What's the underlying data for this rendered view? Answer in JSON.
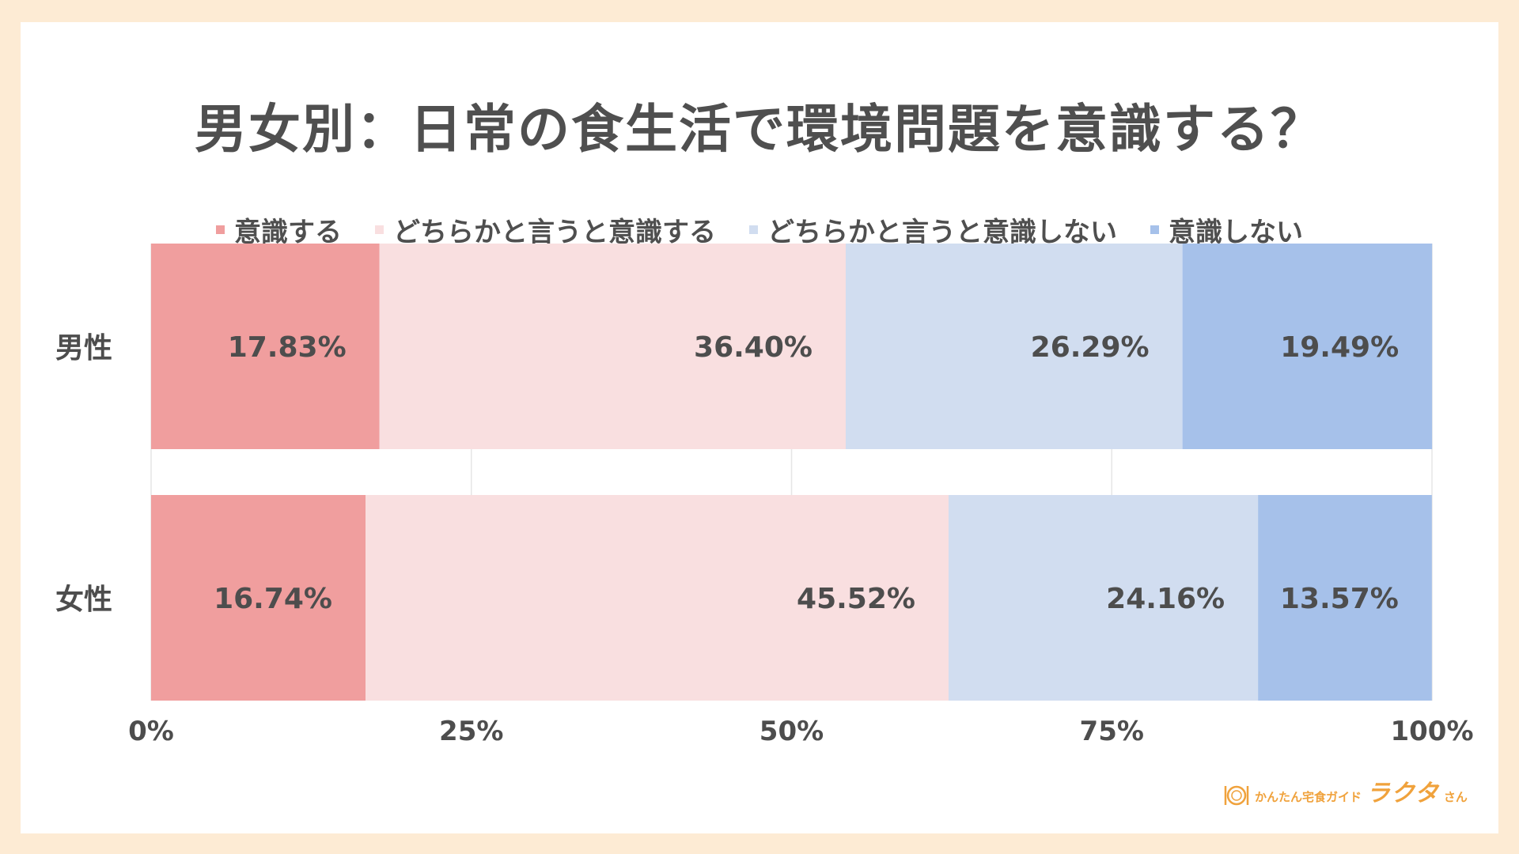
{
  "title": "男女別：日常の食生活で環境問題を意識する？",
  "chart_data": {
    "type": "bar",
    "orientation": "horizontal",
    "stacked": "percent",
    "title": "男女別：日常の食生活で環境問題を意識する？",
    "categories": [
      "男性",
      "女性"
    ],
    "series": [
      {
        "name": "意識する",
        "values": [
          17.83,
          16.74
        ],
        "labels": [
          "17.83%",
          "16.74%"
        ],
        "color": "#f09e9e"
      },
      {
        "name": "どちらかと言うと意識する",
        "values": [
          36.4,
          45.52
        ],
        "labels": [
          "36.40%",
          "45.52%"
        ],
        "color": "#f9dfe0"
      },
      {
        "name": "どちらかと言うと意識しない",
        "values": [
          26.29,
          24.16
        ],
        "labels": [
          "26.29%",
          "24.16%"
        ],
        "color": "#d1ddf0"
      },
      {
        "name": "意識しない",
        "values": [
          19.49,
          13.57
        ],
        "labels": [
          "19.49%",
          "13.57%"
        ],
        "color": "#a6c1ea"
      }
    ],
    "xticks": [
      "0%",
      "25%",
      "50%",
      "75%",
      "100%"
    ],
    "xlim": [
      0,
      100
    ],
    "grid": true,
    "legend_position": "top"
  },
  "logo": {
    "tagline": "かんたん宅食ガイド",
    "name": "ラクタ",
    "suffix": "さん",
    "color": "#f0a23c"
  }
}
